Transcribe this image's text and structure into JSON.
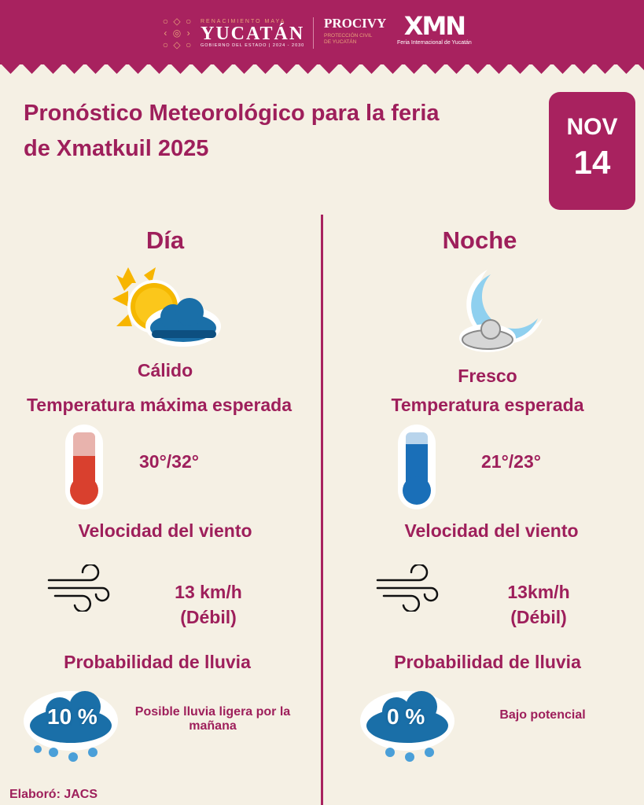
{
  "header": {
    "logo1": {
      "top": "RENACIMIENTO MAYA",
      "main": "YUCATÁN",
      "sub": "GOBIERNO DEL ESTADO | 2024 - 2030"
    },
    "logo2": {
      "main": "PROCIVY",
      "sub1": "PROTECCIÓN CIVIL",
      "sub2": "DE YUCATÁN"
    },
    "logo3": {
      "main": "XMN",
      "sub": "Feria Internacional de Yucatán"
    }
  },
  "title": "Pronóstico Meteorológico para la feria de Xmatkuil 2025",
  "date": {
    "month": "NOV",
    "day": "14"
  },
  "day": {
    "heading": "Día",
    "condition": "Cálido",
    "temp_label": "Temperatura máxima esperada",
    "temp": "30°/32°",
    "wind_label": "Velocidad del viento",
    "wind": "13 km/h",
    "wind_desc": "(Débil)",
    "rain_label": "Probabilidad de lluvia",
    "rain_pct": "10 %",
    "rain_note": "Posible lluvia ligera por la mañana"
  },
  "night": {
    "heading": "Noche",
    "condition": "Fresco",
    "temp_label": "Temperatura esperada",
    "temp": "21°/23°",
    "wind_label": "Velocidad del viento",
    "wind": "13km/h",
    "wind_desc": "(Débil)",
    "rain_label": "Probabilidad de lluvia",
    "rain_pct": "0 %",
    "rain_note": "Bajo potencial"
  },
  "footer": "Elaboró: JACS"
}
